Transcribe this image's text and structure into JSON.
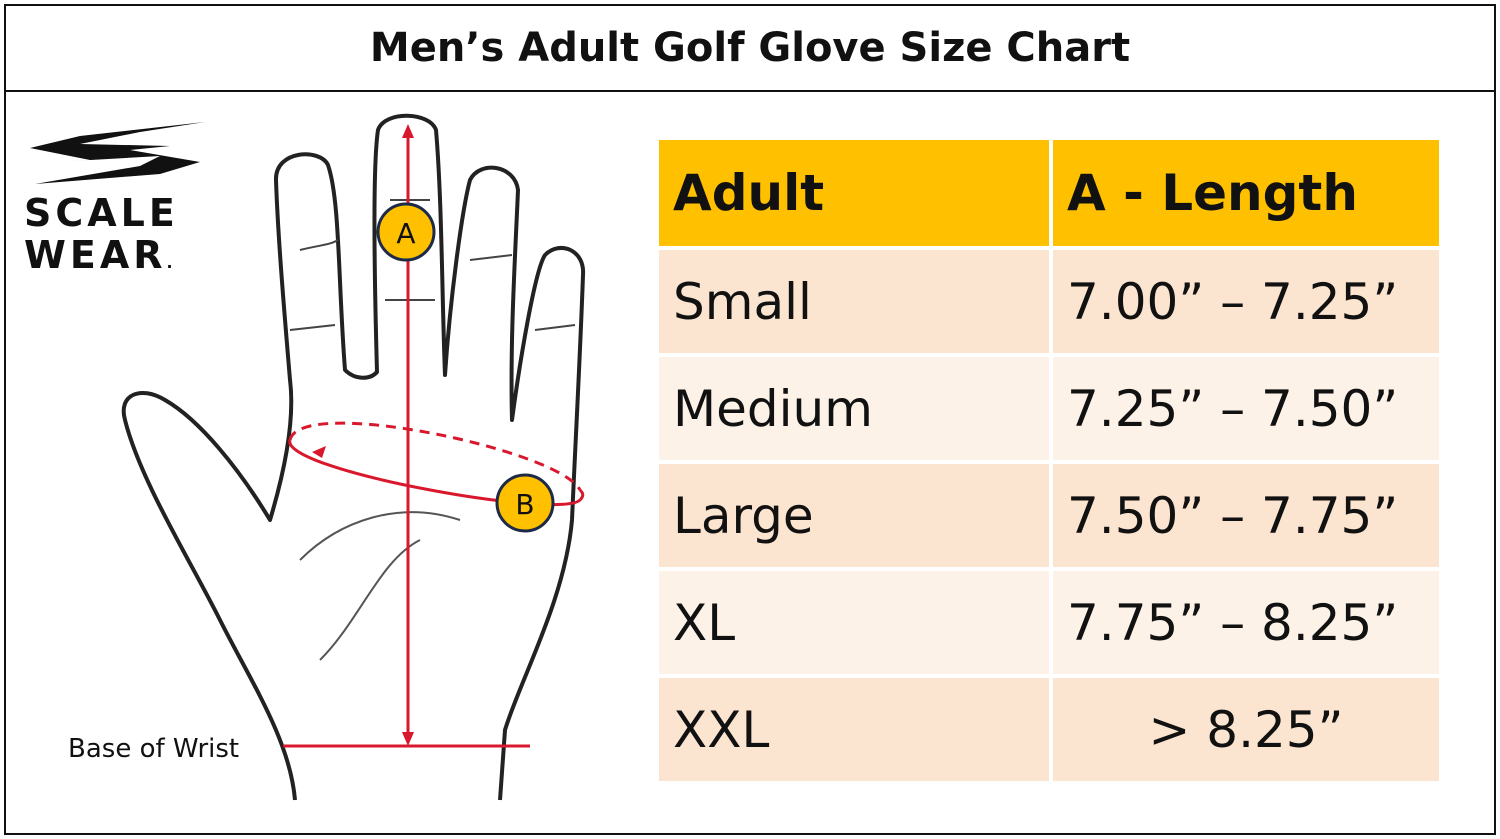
{
  "title": "Men’s Adult Golf Glove Size Chart",
  "brand": {
    "line1": "SCALE",
    "line2": "WEAR",
    "mark": "."
  },
  "diagram": {
    "marker_a": "A",
    "marker_b": "B",
    "wrist_label": "Base of Wrist",
    "measure_color": "#D9182D",
    "marker_color": "#FFC000"
  },
  "table": {
    "headers": [
      "Adult",
      "A - Length"
    ],
    "header_color": "#FFC000",
    "rows": [
      {
        "size": "Small",
        "length": "7.00” – 7.25”"
      },
      {
        "size": "Medium",
        "length": "7.25” – 7.50”"
      },
      {
        "size": "Large",
        "length": "7.50” – 7.75”"
      },
      {
        "size": "XL",
        "length": "7.75” – 8.25”"
      },
      {
        "size": "XXL",
        "length": "> 8.25”"
      }
    ]
  }
}
